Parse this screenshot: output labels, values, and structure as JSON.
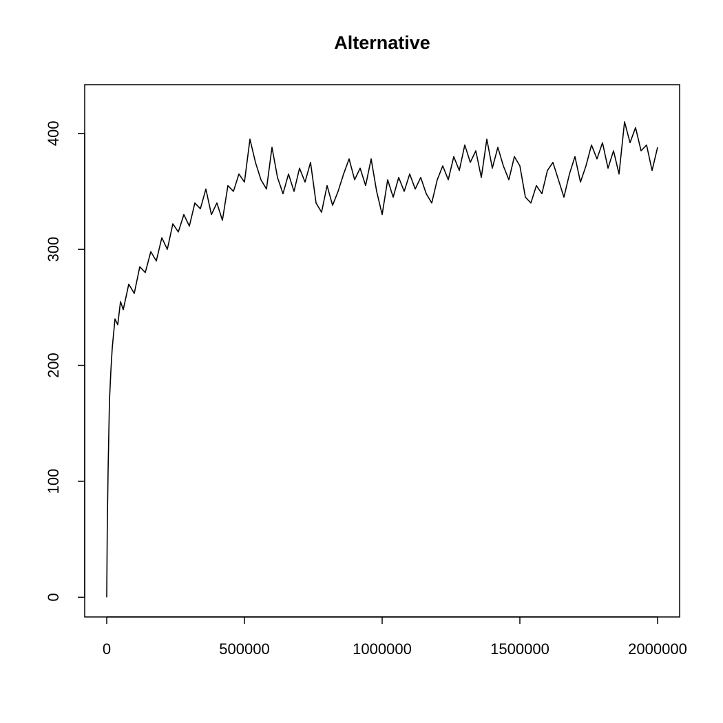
{
  "chart_data": {
    "type": "line",
    "title": "Alternative",
    "color": "#000000",
    "x": [
      0,
      2000,
      5000,
      10000,
      15000,
      20000,
      30000,
      40000,
      50000,
      60000,
      80000,
      100000,
      120000,
      140000,
      160000,
      180000,
      200000,
      220000,
      240000,
      260000,
      280000,
      300000,
      320000,
      340000,
      360000,
      380000,
      400000,
      420000,
      440000,
      460000,
      480000,
      500000,
      520000,
      540000,
      560000,
      580000,
      600000,
      620000,
      640000,
      660000,
      680000,
      700000,
      720000,
      740000,
      760000,
      780000,
      800000,
      820000,
      840000,
      860000,
      880000,
      900000,
      920000,
      940000,
      960000,
      980000,
      1000000,
      1020000,
      1040000,
      1060000,
      1080000,
      1100000,
      1120000,
      1140000,
      1160000,
      1180000,
      1200000,
      1220000,
      1240000,
      1260000,
      1280000,
      1300000,
      1320000,
      1340000,
      1360000,
      1380000,
      1400000,
      1420000,
      1440000,
      1460000,
      1480000,
      1500000,
      1520000,
      1540000,
      1560000,
      1580000,
      1600000,
      1620000,
      1640000,
      1660000,
      1680000,
      1700000,
      1720000,
      1740000,
      1760000,
      1780000,
      1800000,
      1820000,
      1840000,
      1860000,
      1880000,
      1900000,
      1920000,
      1940000,
      1960000,
      1980000,
      2000000
    ],
    "values": [
      0,
      60,
      110,
      170,
      195,
      215,
      240,
      235,
      255,
      248,
      270,
      262,
      285,
      280,
      298,
      290,
      310,
      300,
      322,
      315,
      330,
      320,
      340,
      335,
      352,
      330,
      340,
      325,
      355,
      350,
      365,
      358,
      395,
      375,
      360,
      352,
      388,
      362,
      348,
      365,
      350,
      370,
      358,
      375,
      340,
      332,
      355,
      338,
      350,
      365,
      378,
      360,
      370,
      355,
      378,
      350,
      330,
      360,
      345,
      362,
      350,
      365,
      352,
      362,
      348,
      340,
      360,
      372,
      360,
      380,
      368,
      390,
      375,
      385,
      362,
      395,
      370,
      388,
      372,
      360,
      380,
      372,
      345,
      340,
      355,
      348,
      368,
      375,
      360,
      345,
      365,
      380,
      358,
      372,
      390,
      378,
      392,
      370,
      385,
      365,
      410,
      392,
      405,
      385,
      390,
      368,
      388
    ],
    "xlim": [
      -80000,
      2080000
    ],
    "ylim": [
      -17,
      442
    ],
    "xticks": [
      0,
      500000,
      1000000,
      1500000,
      2000000
    ],
    "yticks": [
      0,
      100,
      200,
      300,
      400
    ]
  }
}
